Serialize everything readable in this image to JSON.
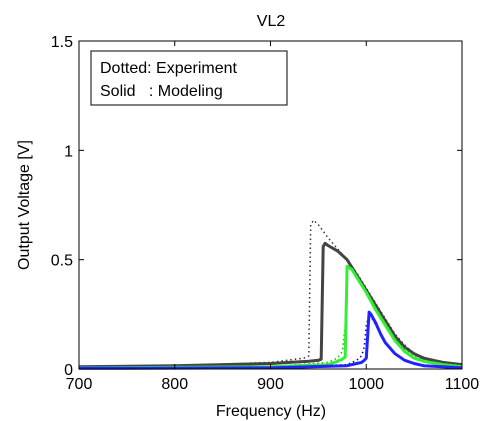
{
  "chart_data": {
    "type": "line",
    "title": "VL2",
    "xlabel": "Frequency (Hz)",
    "ylabel": "Output Voltage [V]",
    "xlim": [
      700,
      1100
    ],
    "ylim": [
      0,
      1.5
    ],
    "xticks": [
      700,
      800,
      900,
      1000,
      1100
    ],
    "xtick_labels": [
      "700",
      "800",
      "900",
      "1000",
      "1100"
    ],
    "yticks": [
      0,
      0.5,
      1,
      1.5
    ],
    "ytick_labels": [
      "0",
      "0.5",
      "1",
      "1.5"
    ],
    "grid": false,
    "legend_position": "top-left",
    "annotation": [
      "Dotted: Experiment",
      "Solid   : Modeling"
    ],
    "series": [
      {
        "style": "dotted",
        "color": "#333333",
        "x": [
          700,
          800,
          900,
          935,
          940,
          942,
          945,
          950,
          960,
          970,
          980,
          990,
          1000,
          1010,
          1020,
          1030,
          1040,
          1050,
          1060,
          1070,
          1080,
          1090,
          1100
        ],
        "y": [
          0.01,
          0.015,
          0.03,
          0.05,
          0.06,
          0.66,
          0.68,
          0.66,
          0.6,
          0.55,
          0.5,
          0.44,
          0.37,
          0.3,
          0.23,
          0.16,
          0.11,
          0.07,
          0.05,
          0.04,
          0.03,
          0.025,
          0.02
        ]
      },
      {
        "style": "solid",
        "color": "#444444",
        "x": [
          700,
          800,
          900,
          940,
          950,
          953,
          955,
          957,
          960,
          970,
          980,
          990,
          1000,
          1010,
          1020,
          1030,
          1040,
          1050,
          1060,
          1070,
          1080,
          1090,
          1100
        ],
        "y": [
          0.01,
          0.015,
          0.025,
          0.035,
          0.04,
          0.045,
          0.56,
          0.575,
          0.565,
          0.54,
          0.5,
          0.43,
          0.36,
          0.29,
          0.22,
          0.15,
          0.1,
          0.07,
          0.05,
          0.04,
          0.03,
          0.025,
          0.02
        ]
      },
      {
        "style": "dotted",
        "color": "#00bb00",
        "x": [
          700,
          900,
          960,
          970,
          975,
          978,
          980,
          985,
          990,
          1000,
          1010,
          1020,
          1030,
          1040,
          1050,
          1060,
          1080,
          1100
        ],
        "y": [
          0.005,
          0.01,
          0.03,
          0.05,
          0.08,
          0.2,
          0.47,
          0.46,
          0.42,
          0.35,
          0.28,
          0.21,
          0.14,
          0.09,
          0.06,
          0.04,
          0.025,
          0.015
        ]
      },
      {
        "style": "solid",
        "color": "#33ee33",
        "x": [
          700,
          900,
          960,
          970,
          975,
          978,
          980,
          985,
          990,
          1000,
          1010,
          1020,
          1030,
          1040,
          1050,
          1060,
          1080,
          1100
        ],
        "y": [
          0.005,
          0.01,
          0.02,
          0.035,
          0.045,
          0.055,
          0.47,
          0.455,
          0.42,
          0.35,
          0.27,
          0.2,
          0.13,
          0.08,
          0.05,
          0.035,
          0.02,
          0.01
        ]
      },
      {
        "style": "dotted",
        "color": "#0000aa",
        "x": [
          700,
          900,
          980,
          990,
          995,
          998,
          1000,
          1003,
          1005,
          1010,
          1015,
          1020,
          1030,
          1040,
          1050,
          1060,
          1080,
          1100
        ],
        "y": [
          0.003,
          0.005,
          0.02,
          0.04,
          0.06,
          0.1,
          0.2,
          0.25,
          0.24,
          0.2,
          0.16,
          0.12,
          0.07,
          0.04,
          0.025,
          0.015,
          0.01,
          0.005
        ]
      },
      {
        "style": "solid",
        "color": "#2222ff",
        "x": [
          700,
          900,
          980,
          990,
          995,
          998,
          1000,
          1003,
          1005,
          1010,
          1015,
          1020,
          1030,
          1040,
          1050,
          1060,
          1080,
          1100
        ],
        "y": [
          0.003,
          0.005,
          0.015,
          0.025,
          0.03,
          0.04,
          0.05,
          0.26,
          0.25,
          0.21,
          0.16,
          0.12,
          0.07,
          0.04,
          0.025,
          0.015,
          0.01,
          0.005
        ]
      }
    ]
  }
}
